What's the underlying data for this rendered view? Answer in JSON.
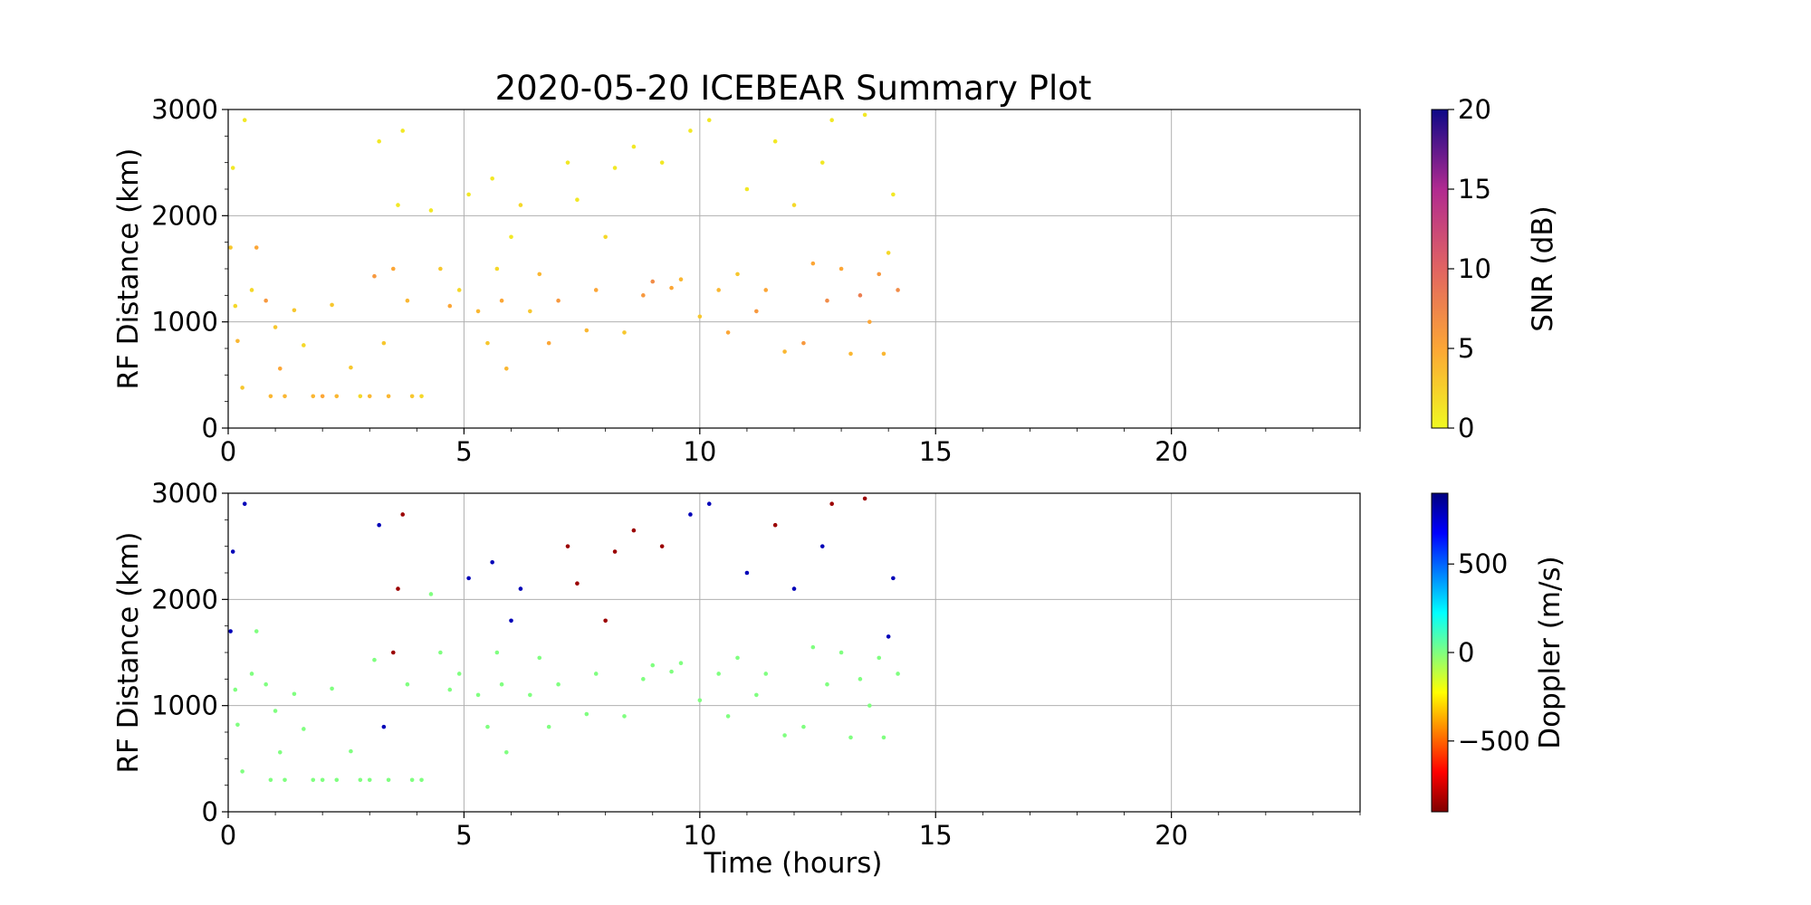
{
  "chart_data": [
    {
      "type": "scatter",
      "title": "2020-05-20 ICEBEAR Summary Plot",
      "xlabel": "",
      "ylabel": "RF Distance (km)",
      "xlim": [
        0,
        24
      ],
      "ylim": [
        0,
        3000
      ],
      "x_ticks": [
        0,
        5,
        10,
        15,
        20
      ],
      "y_ticks": [
        0,
        1000,
        2000,
        3000
      ],
      "grid": true,
      "colorbar": {
        "label": "SNR (dB)",
        "range": [
          0,
          20
        ],
        "ticks": [
          0,
          5,
          10,
          15,
          20
        ],
        "colormap": "plasma_r"
      },
      "series": [
        {
          "x": [
            0.05,
            0.1,
            0.15,
            0.2,
            0.3,
            0.35,
            0.5,
            0.6,
            0.8,
            0.9,
            1.0,
            1.1,
            1.2,
            1.4,
            1.6,
            1.8,
            2.0,
            2.2,
            2.3,
            2.6,
            2.8,
            3.0,
            3.1,
            3.2,
            3.3,
            3.4,
            3.5,
            3.6,
            3.7,
            3.8,
            3.9,
            4.1,
            4.3,
            4.5,
            4.7,
            4.9,
            5.1,
            5.3,
            5.5,
            5.6,
            5.7,
            5.8,
            5.9,
            6.0,
            6.2,
            6.4,
            6.6,
            6.8,
            7.0,
            7.2,
            7.4,
            7.6,
            7.8,
            8.0,
            8.2,
            8.4,
            8.6,
            8.8,
            9.0,
            9.2,
            9.4,
            9.6,
            9.8,
            10.0,
            10.2,
            10.4,
            10.6,
            10.8,
            11.0,
            11.2,
            11.4,
            11.6,
            11.8,
            12.0,
            12.2,
            12.4,
            12.6,
            12.7,
            12.8,
            13.0,
            13.2,
            13.4,
            13.5,
            13.6,
            13.8,
            13.9,
            14.0,
            14.1,
            14.2
          ],
          "y": [
            1700,
            2450,
            1150,
            820,
            380,
            2900,
            1300,
            1700,
            1200,
            300,
            950,
            560,
            300,
            1110,
            780,
            300,
            300,
            1160,
            300,
            570,
            300,
            300,
            1430,
            2700,
            800,
            300,
            1500,
            2100,
            2800,
            1200,
            300,
            300,
            2050,
            1500,
            1150,
            1300,
            2200,
            1100,
            800,
            2350,
            1500,
            1200,
            560,
            1800,
            2100,
            1100,
            1450,
            800,
            1200,
            2500,
            2150,
            920,
            1300,
            1800,
            2450,
            900,
            2650,
            1250,
            1380,
            2500,
            1320,
            1400,
            2800,
            1050,
            2900,
            1300,
            900,
            1450,
            2250,
            1100,
            1300,
            2700,
            720,
            2100,
            800,
            1550,
            2500,
            1200,
            2900,
            1500,
            700,
            1250,
            2950,
            1000,
            1450,
            700,
            1650,
            2200,
            1300
          ],
          "snr": [
            3,
            1,
            2,
            4,
            3,
            1,
            2,
            5,
            6,
            4,
            3,
            5,
            4,
            3,
            2,
            4,
            5,
            3,
            4,
            3,
            2,
            4,
            6,
            1,
            3,
            4,
            5,
            1,
            1,
            4,
            3,
            2,
            1,
            3,
            5,
            2,
            1,
            4,
            3,
            1,
            2,
            5,
            4,
            1,
            2,
            3,
            4,
            5,
            6,
            1,
            1,
            4,
            5,
            2,
            1,
            3,
            1,
            6,
            7,
            1,
            5,
            4,
            1,
            3,
            1,
            4,
            5,
            3,
            1,
            6,
            5,
            1,
            4,
            2,
            6,
            5,
            1,
            7,
            1,
            5,
            4,
            8,
            1,
            5,
            6,
            4,
            2,
            1,
            7
          ]
        }
      ]
    },
    {
      "type": "scatter",
      "title": "",
      "xlabel": "Time (hours)",
      "ylabel": "RF Distance (km)",
      "xlim": [
        0,
        24
      ],
      "ylim": [
        0,
        3000
      ],
      "x_ticks": [
        0,
        5,
        10,
        15,
        20
      ],
      "y_ticks": [
        0,
        1000,
        2000,
        3000
      ],
      "grid": true,
      "colorbar": {
        "label": "Doppler (m/s)",
        "range": [
          -900,
          900
        ],
        "ticks": [
          -500,
          0,
          500
        ],
        "colormap": "jet_r"
      },
      "series": [
        {
          "x": [
            0.05,
            0.1,
            0.15,
            0.2,
            0.3,
            0.35,
            0.5,
            0.6,
            0.8,
            0.9,
            1.0,
            1.1,
            1.2,
            1.4,
            1.6,
            1.8,
            2.0,
            2.2,
            2.3,
            2.6,
            2.8,
            3.0,
            3.1,
            3.2,
            3.3,
            3.4,
            3.5,
            3.6,
            3.7,
            3.8,
            3.9,
            4.1,
            4.3,
            4.5,
            4.7,
            4.9,
            5.1,
            5.3,
            5.5,
            5.6,
            5.7,
            5.8,
            5.9,
            6.0,
            6.2,
            6.4,
            6.6,
            6.8,
            7.0,
            7.2,
            7.4,
            7.6,
            7.8,
            8.0,
            8.2,
            8.4,
            8.6,
            8.8,
            9.0,
            9.2,
            9.4,
            9.6,
            9.8,
            10.0,
            10.2,
            10.4,
            10.6,
            10.8,
            11.0,
            11.2,
            11.4,
            11.6,
            11.8,
            12.0,
            12.2,
            12.4,
            12.6,
            12.7,
            12.8,
            13.0,
            13.2,
            13.4,
            13.5,
            13.6,
            13.8,
            13.9,
            14.0,
            14.1,
            14.2
          ],
          "y": [
            1700,
            2450,
            1150,
            820,
            380,
            2900,
            1300,
            1700,
            1200,
            300,
            950,
            560,
            300,
            1110,
            780,
            300,
            300,
            1160,
            300,
            570,
            300,
            300,
            1430,
            2700,
            800,
            300,
            1500,
            2100,
            2800,
            1200,
            300,
            300,
            2050,
            1500,
            1150,
            1300,
            2200,
            1100,
            800,
            2350,
            1500,
            1200,
            560,
            1800,
            2100,
            1100,
            1450,
            800,
            1200,
            2500,
            2150,
            920,
            1300,
            1800,
            2450,
            900,
            2650,
            1250,
            1380,
            2500,
            1320,
            1400,
            2800,
            1050,
            2900,
            1300,
            900,
            1450,
            2250,
            1100,
            1300,
            2700,
            720,
            2100,
            800,
            1550,
            2500,
            1200,
            2900,
            1500,
            700,
            1250,
            2950,
            1000,
            1450,
            700,
            1650,
            2200,
            1300
          ],
          "doppler": [
            800,
            800,
            0,
            0,
            0,
            800,
            0,
            0,
            0,
            0,
            0,
            0,
            0,
            0,
            0,
            0,
            0,
            0,
            0,
            0,
            0,
            0,
            0,
            800,
            800,
            0,
            -850,
            -850,
            -850,
            0,
            0,
            0,
            0,
            0,
            0,
            0,
            800,
            0,
            0,
            800,
            0,
            0,
            0,
            800,
            800,
            0,
            0,
            0,
            0,
            -850,
            -850,
            0,
            0,
            -850,
            -850,
            0,
            -850,
            0,
            0,
            -850,
            0,
            0,
            800,
            0,
            800,
            0,
            0,
            0,
            800,
            0,
            0,
            -850,
            0,
            800,
            0,
            0,
            800,
            0,
            -850,
            0,
            0,
            0,
            -850,
            0,
            0,
            0,
            800,
            800,
            0
          ]
        }
      ]
    }
  ]
}
